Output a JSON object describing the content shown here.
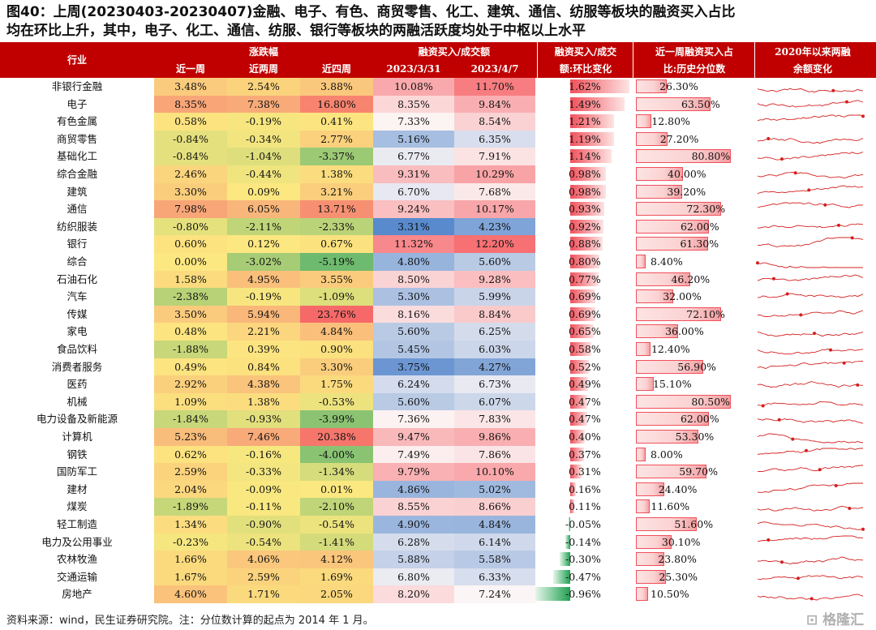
{
  "title": {
    "line1": "图40：上周(20230403-20230407)金融、电子、有色、商贸零售、化工、建筑、通信、纺服等板块的融资买入占比",
    "line2": "均在环比上升，其中，电子、化工、通信、纺服、银行等板块的两融活跃度均处于中枢以上水平"
  },
  "header": {
    "industry": "行业",
    "change_group": "涨跌幅",
    "w1": "近一周",
    "w2": "近两周",
    "w4": "近四周",
    "ratio_group": "融资买入/成交额",
    "d1": "2023/3/31",
    "d2": "2023/4/7",
    "mom_line1": "融资买入/成交",
    "mom_line2": "额:环比变化",
    "pct_line1": "近一周融资买入占",
    "pct_line2": "比:历史分位数",
    "spark_line1": "2020年以来两融",
    "spark_line2": "余额变化"
  },
  "colors": {
    "header_bg": "#c00000",
    "bar_red": "#f0505a",
    "bar_green": "#20a050",
    "spark_line": "#d42020"
  },
  "rows": [
    {
      "name": "非银行金融",
      "w1": "3.48%",
      "w2": "2.54%",
      "w4": "3.88%",
      "d1": "10.08%",
      "d2": "11.70%",
      "mom": "1.62%",
      "pct": "26.30%"
    },
    {
      "name": "电子",
      "w1": "8.35%",
      "w2": "7.38%",
      "w4": "16.80%",
      "d1": "8.35%",
      "d2": "9.84%",
      "mom": "1.49%",
      "pct": "63.50%"
    },
    {
      "name": "有色金属",
      "w1": "0.58%",
      "w2": "-0.19%",
      "w4": "0.41%",
      "d1": "7.33%",
      "d2": "8.54%",
      "mom": "1.21%",
      "pct": "12.80%"
    },
    {
      "name": "商贸零售",
      "w1": "-0.84%",
      "w2": "-0.34%",
      "w4": "2.77%",
      "d1": "5.16%",
      "d2": "6.35%",
      "mom": "1.19%",
      "pct": "27.20%"
    },
    {
      "name": "基础化工",
      "w1": "-0.84%",
      "w2": "-1.04%",
      "w4": "-3.37%",
      "d1": "6.77%",
      "d2": "7.91%",
      "mom": "1.14%",
      "pct": "80.80%"
    },
    {
      "name": "综合金融",
      "w1": "2.46%",
      "w2": "-0.44%",
      "w4": "1.38%",
      "d1": "9.31%",
      "d2": "10.29%",
      "mom": "0.98%",
      "pct": "40.00%"
    },
    {
      "name": "建筑",
      "w1": "3.30%",
      "w2": "0.09%",
      "w4": "3.21%",
      "d1": "6.70%",
      "d2": "7.68%",
      "mom": "0.98%",
      "pct": "39.20%"
    },
    {
      "name": "通信",
      "w1": "7.98%",
      "w2": "6.05%",
      "w4": "13.71%",
      "d1": "9.24%",
      "d2": "10.17%",
      "mom": "0.93%",
      "pct": "72.30%"
    },
    {
      "name": "纺织服装",
      "w1": "-0.80%",
      "w2": "-2.11%",
      "w4": "-2.33%",
      "d1": "3.31%",
      "d2": "4.23%",
      "mom": "0.92%",
      "pct": "62.00%"
    },
    {
      "name": "银行",
      "w1": "0.60%",
      "w2": "0.12%",
      "w4": "0.67%",
      "d1": "11.32%",
      "d2": "12.20%",
      "mom": "0.88%",
      "pct": "61.30%"
    },
    {
      "name": "综合",
      "w1": "0.00%",
      "w2": "-3.02%",
      "w4": "-5.19%",
      "d1": "4.80%",
      "d2": "5.60%",
      "mom": "0.80%",
      "pct": "8.40%"
    },
    {
      "name": "石油石化",
      "w1": "1.58%",
      "w2": "4.95%",
      "w4": "3.55%",
      "d1": "8.50%",
      "d2": "9.28%",
      "mom": "0.77%",
      "pct": "46.20%"
    },
    {
      "name": "汽车",
      "w1": "-2.38%",
      "w2": "-0.19%",
      "w4": "-1.09%",
      "d1": "5.30%",
      "d2": "5.99%",
      "mom": "0.69%",
      "pct": "32.00%"
    },
    {
      "name": "传媒",
      "w1": "3.50%",
      "w2": "5.94%",
      "w4": "23.76%",
      "d1": "8.16%",
      "d2": "8.84%",
      "mom": "0.69%",
      "pct": "72.10%"
    },
    {
      "name": "家电",
      "w1": "0.48%",
      "w2": "2.21%",
      "w4": "4.84%",
      "d1": "5.60%",
      "d2": "6.25%",
      "mom": "0.65%",
      "pct": "36.00%"
    },
    {
      "name": "食品饮料",
      "w1": "-1.88%",
      "w2": "0.39%",
      "w4": "0.90%",
      "d1": "5.45%",
      "d2": "6.03%",
      "mom": "0.58%",
      "pct": "12.40%"
    },
    {
      "name": "消费者服务",
      "w1": "0.49%",
      "w2": "0.84%",
      "w4": "3.30%",
      "d1": "3.75%",
      "d2": "4.27%",
      "mom": "0.52%",
      "pct": "56.90%"
    },
    {
      "name": "医药",
      "w1": "2.92%",
      "w2": "4.38%",
      "w4": "1.75%",
      "d1": "6.24%",
      "d2": "6.73%",
      "mom": "0.49%",
      "pct": "15.10%"
    },
    {
      "name": "机械",
      "w1": "1.09%",
      "w2": "1.38%",
      "w4": "-0.53%",
      "d1": "5.60%",
      "d2": "6.07%",
      "mom": "0.47%",
      "pct": "80.50%"
    },
    {
      "name": "电力设备及新能源",
      "w1": "-1.84%",
      "w2": "-0.93%",
      "w4": "-3.99%",
      "d1": "7.36%",
      "d2": "7.83%",
      "mom": "0.47%",
      "pct": "62.00%"
    },
    {
      "name": "计算机",
      "w1": "5.23%",
      "w2": "7.46%",
      "w4": "20.38%",
      "d1": "9.47%",
      "d2": "9.86%",
      "mom": "0.40%",
      "pct": "53.30%"
    },
    {
      "name": "钢铁",
      "w1": "0.62%",
      "w2": "-0.16%",
      "w4": "-4.00%",
      "d1": "7.49%",
      "d2": "7.86%",
      "mom": "0.37%",
      "pct": "8.00%"
    },
    {
      "name": "国防军工",
      "w1": "2.59%",
      "w2": "-0.33%",
      "w4": "-1.34%",
      "d1": "9.79%",
      "d2": "10.10%",
      "mom": "0.31%",
      "pct": "59.70%"
    },
    {
      "name": "建材",
      "w1": "2.04%",
      "w2": "-0.09%",
      "w4": "0.01%",
      "d1": "4.86%",
      "d2": "5.02%",
      "mom": "0.16%",
      "pct": "24.40%"
    },
    {
      "name": "煤炭",
      "w1": "-1.89%",
      "w2": "-0.11%",
      "w4": "-2.10%",
      "d1": "8.55%",
      "d2": "8.66%",
      "mom": "0.11%",
      "pct": "11.60%"
    },
    {
      "name": "轻工制造",
      "w1": "1.34%",
      "w2": "-0.90%",
      "w4": "-0.54%",
      "d1": "4.90%",
      "d2": "4.84%",
      "mom": "-0.05%",
      "pct": "51.60%"
    },
    {
      "name": "电力及公用事业",
      "w1": "-0.23%",
      "w2": "-0.54%",
      "w4": "-1.41%",
      "d1": "6.28%",
      "d2": "6.14%",
      "mom": "-0.14%",
      "pct": "30.10%"
    },
    {
      "name": "农林牧渔",
      "w1": "1.66%",
      "w2": "4.06%",
      "w4": "4.12%",
      "d1": "5.88%",
      "d2": "5.58%",
      "mom": "-0.30%",
      "pct": "23.80%"
    },
    {
      "name": "交通运输",
      "w1": "1.67%",
      "w2": "2.59%",
      "w4": "1.69%",
      "d1": "6.80%",
      "d2": "6.33%",
      "mom": "-0.47%",
      "pct": "25.30%"
    },
    {
      "name": "房地产",
      "w1": "4.60%",
      "w2": "1.71%",
      "w4": "2.05%",
      "d1": "8.20%",
      "d2": "7.24%",
      "mom": "-0.96%",
      "pct": "10.50%"
    }
  ],
  "footer": "资料来源：wind，民生证券研究院。注：分位数计算的起点为 2014 年 1 月。",
  "watermark": "格隆汇"
}
